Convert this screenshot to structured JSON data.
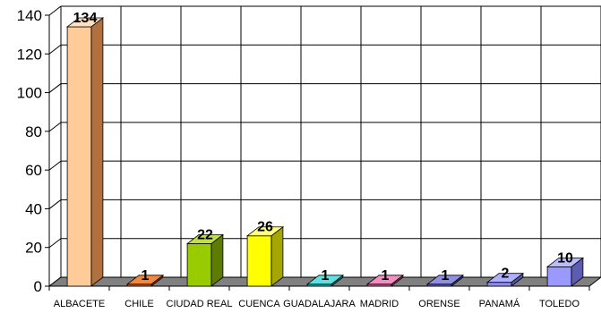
{
  "chart_data": {
    "type": "bar",
    "style": "3d-column",
    "categories": [
      "ALBACETE",
      "CHILE",
      "CIUDAD REAL",
      "CUENCA",
      "GUADALAJARA",
      "MADRID",
      "ORENSE",
      "PANAMÁ",
      "TOLEDO"
    ],
    "values": [
      134,
      1,
      22,
      26,
      1,
      1,
      1,
      2,
      10
    ],
    "ylim": [
      0,
      140
    ],
    "yticks": [
      "0",
      "20",
      "40",
      "60",
      "80",
      "100",
      "120",
      "140"
    ],
    "grid": true,
    "data_labels": true,
    "title": "",
    "xlabel": "",
    "ylabel": ""
  },
  "colors": {
    "bars": [
      {
        "front": "#FFCC99",
        "side": "#B3703F",
        "top": "#FFE0C0"
      },
      {
        "front": "#E06010",
        "side": "#9A3C05",
        "top": "#F08840"
      },
      {
        "front": "#99CC00",
        "side": "#5E7D00",
        "top": "#C0E040"
      },
      {
        "front": "#FFFF00",
        "side": "#A6A600",
        "top": "#FFFF80"
      },
      {
        "front": "#00CCCC",
        "side": "#008080",
        "top": "#60E0E0"
      },
      {
        "front": "#E060A0",
        "side": "#9A3A6C",
        "top": "#F090C0"
      },
      {
        "front": "#6666CC",
        "side": "#3C3C8A",
        "top": "#9090E0"
      },
      {
        "front": "#8C8CF0",
        "side": "#5454AA",
        "top": "#B0B0FF"
      },
      {
        "front": "#9999FF",
        "side": "#5C5CB0",
        "top": "#BBBBFF"
      }
    ],
    "floor": "#808080",
    "grid": "#000000"
  }
}
